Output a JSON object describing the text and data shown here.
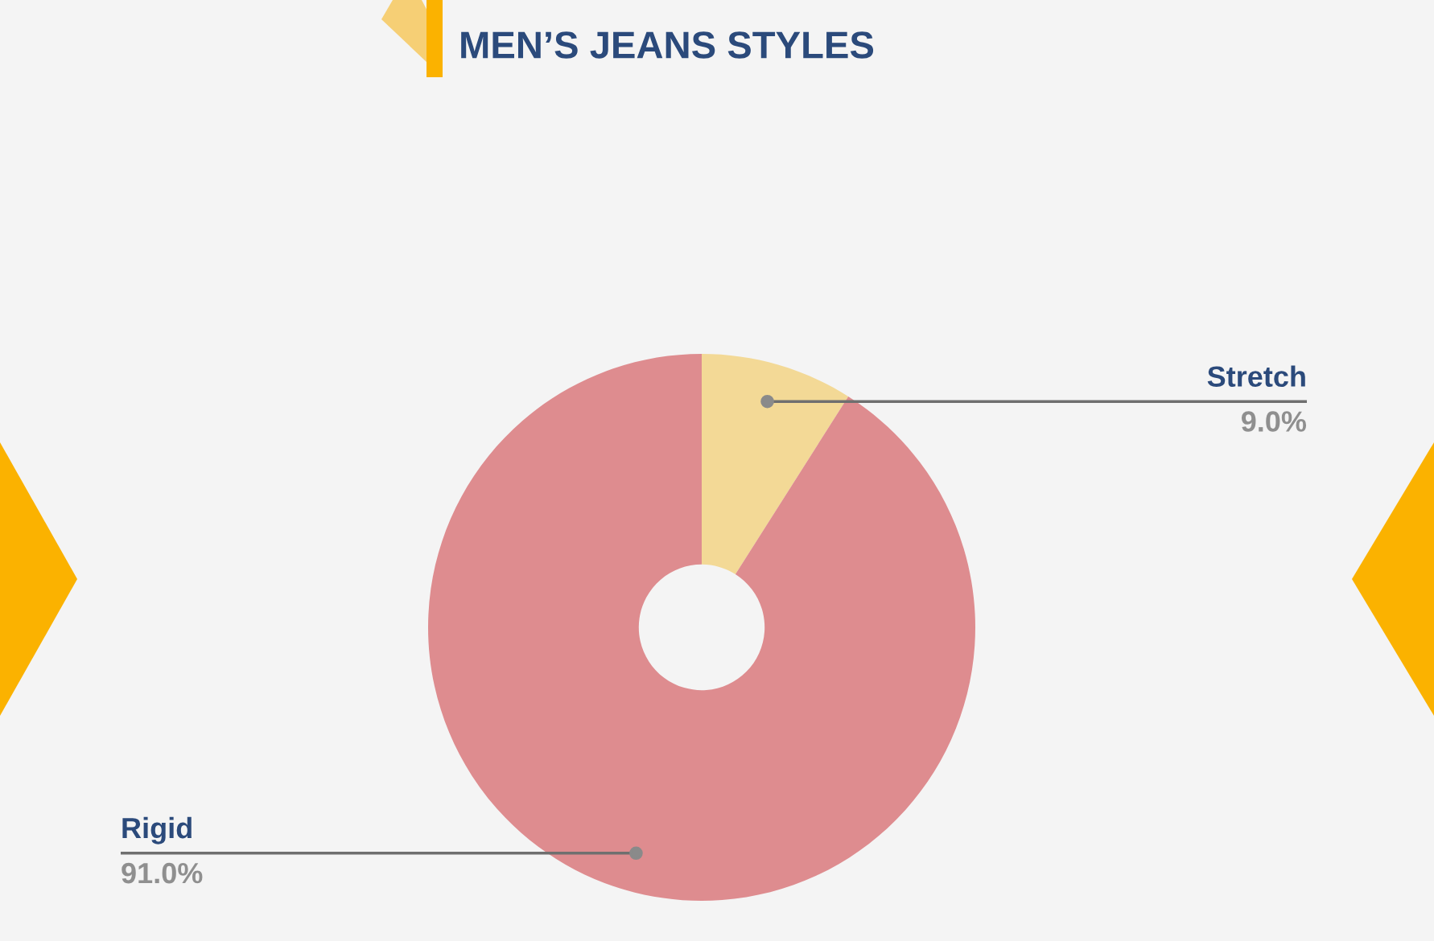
{
  "chart_data": {
    "type": "donut",
    "title": "MEN’S JEANS STYLES",
    "categories": [
      "Stretch",
      "Rigid"
    ],
    "values": [
      9.0,
      91.0
    ],
    "colors": [
      "#f3d996",
      "#de8c8f"
    ],
    "value_labels": [
      "9.0%",
      "91.0%"
    ]
  }
}
